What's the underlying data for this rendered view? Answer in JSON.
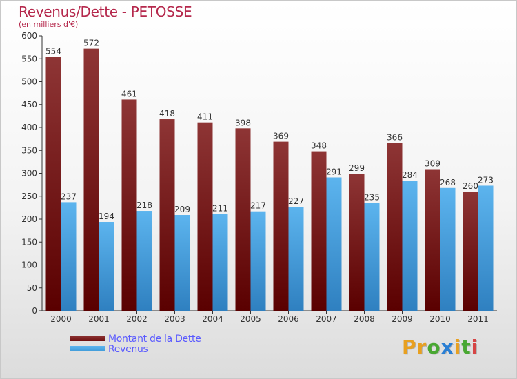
{
  "title": "Revenus/Dette - PETOSSE",
  "subtitle": "(en milliers d'€)",
  "logo": {
    "letters": [
      "P",
      "r",
      "o",
      "x",
      "i",
      "t",
      "i"
    ],
    "colors": [
      "#e8a020",
      "#e8a020",
      "#49a832",
      "#2a7fd4",
      "#e8a020",
      "#49a832",
      "#d64545"
    ]
  },
  "legend": [
    {
      "label": "Montant de la Dette",
      "color": "#6e0f0f"
    },
    {
      "label": "Revenus",
      "color": "#3f9ad8"
    }
  ],
  "chart_data": {
    "type": "bar",
    "categories": [
      "2000",
      "2001",
      "2002",
      "2003",
      "2004",
      "2005",
      "2006",
      "2007",
      "2008",
      "2009",
      "2010",
      "2011"
    ],
    "series": [
      {
        "name": "Montant de la Dette",
        "values": [
          554,
          572,
          461,
          418,
          411,
          398,
          369,
          348,
          299,
          366,
          309,
          260
        ],
        "color": "#6e0f0f"
      },
      {
        "name": "Revenus",
        "values": [
          237,
          194,
          218,
          209,
          211,
          217,
          227,
          291,
          235,
          284,
          268,
          273
        ],
        "color": "#3f9ad8"
      }
    ],
    "yticks": [
      0,
      50,
      100,
      150,
      200,
      250,
      300,
      350,
      400,
      450,
      500,
      550,
      600
    ],
    "ylim": [
      0,
      600
    ],
    "grid": false,
    "legend_position": "bottom-left"
  }
}
